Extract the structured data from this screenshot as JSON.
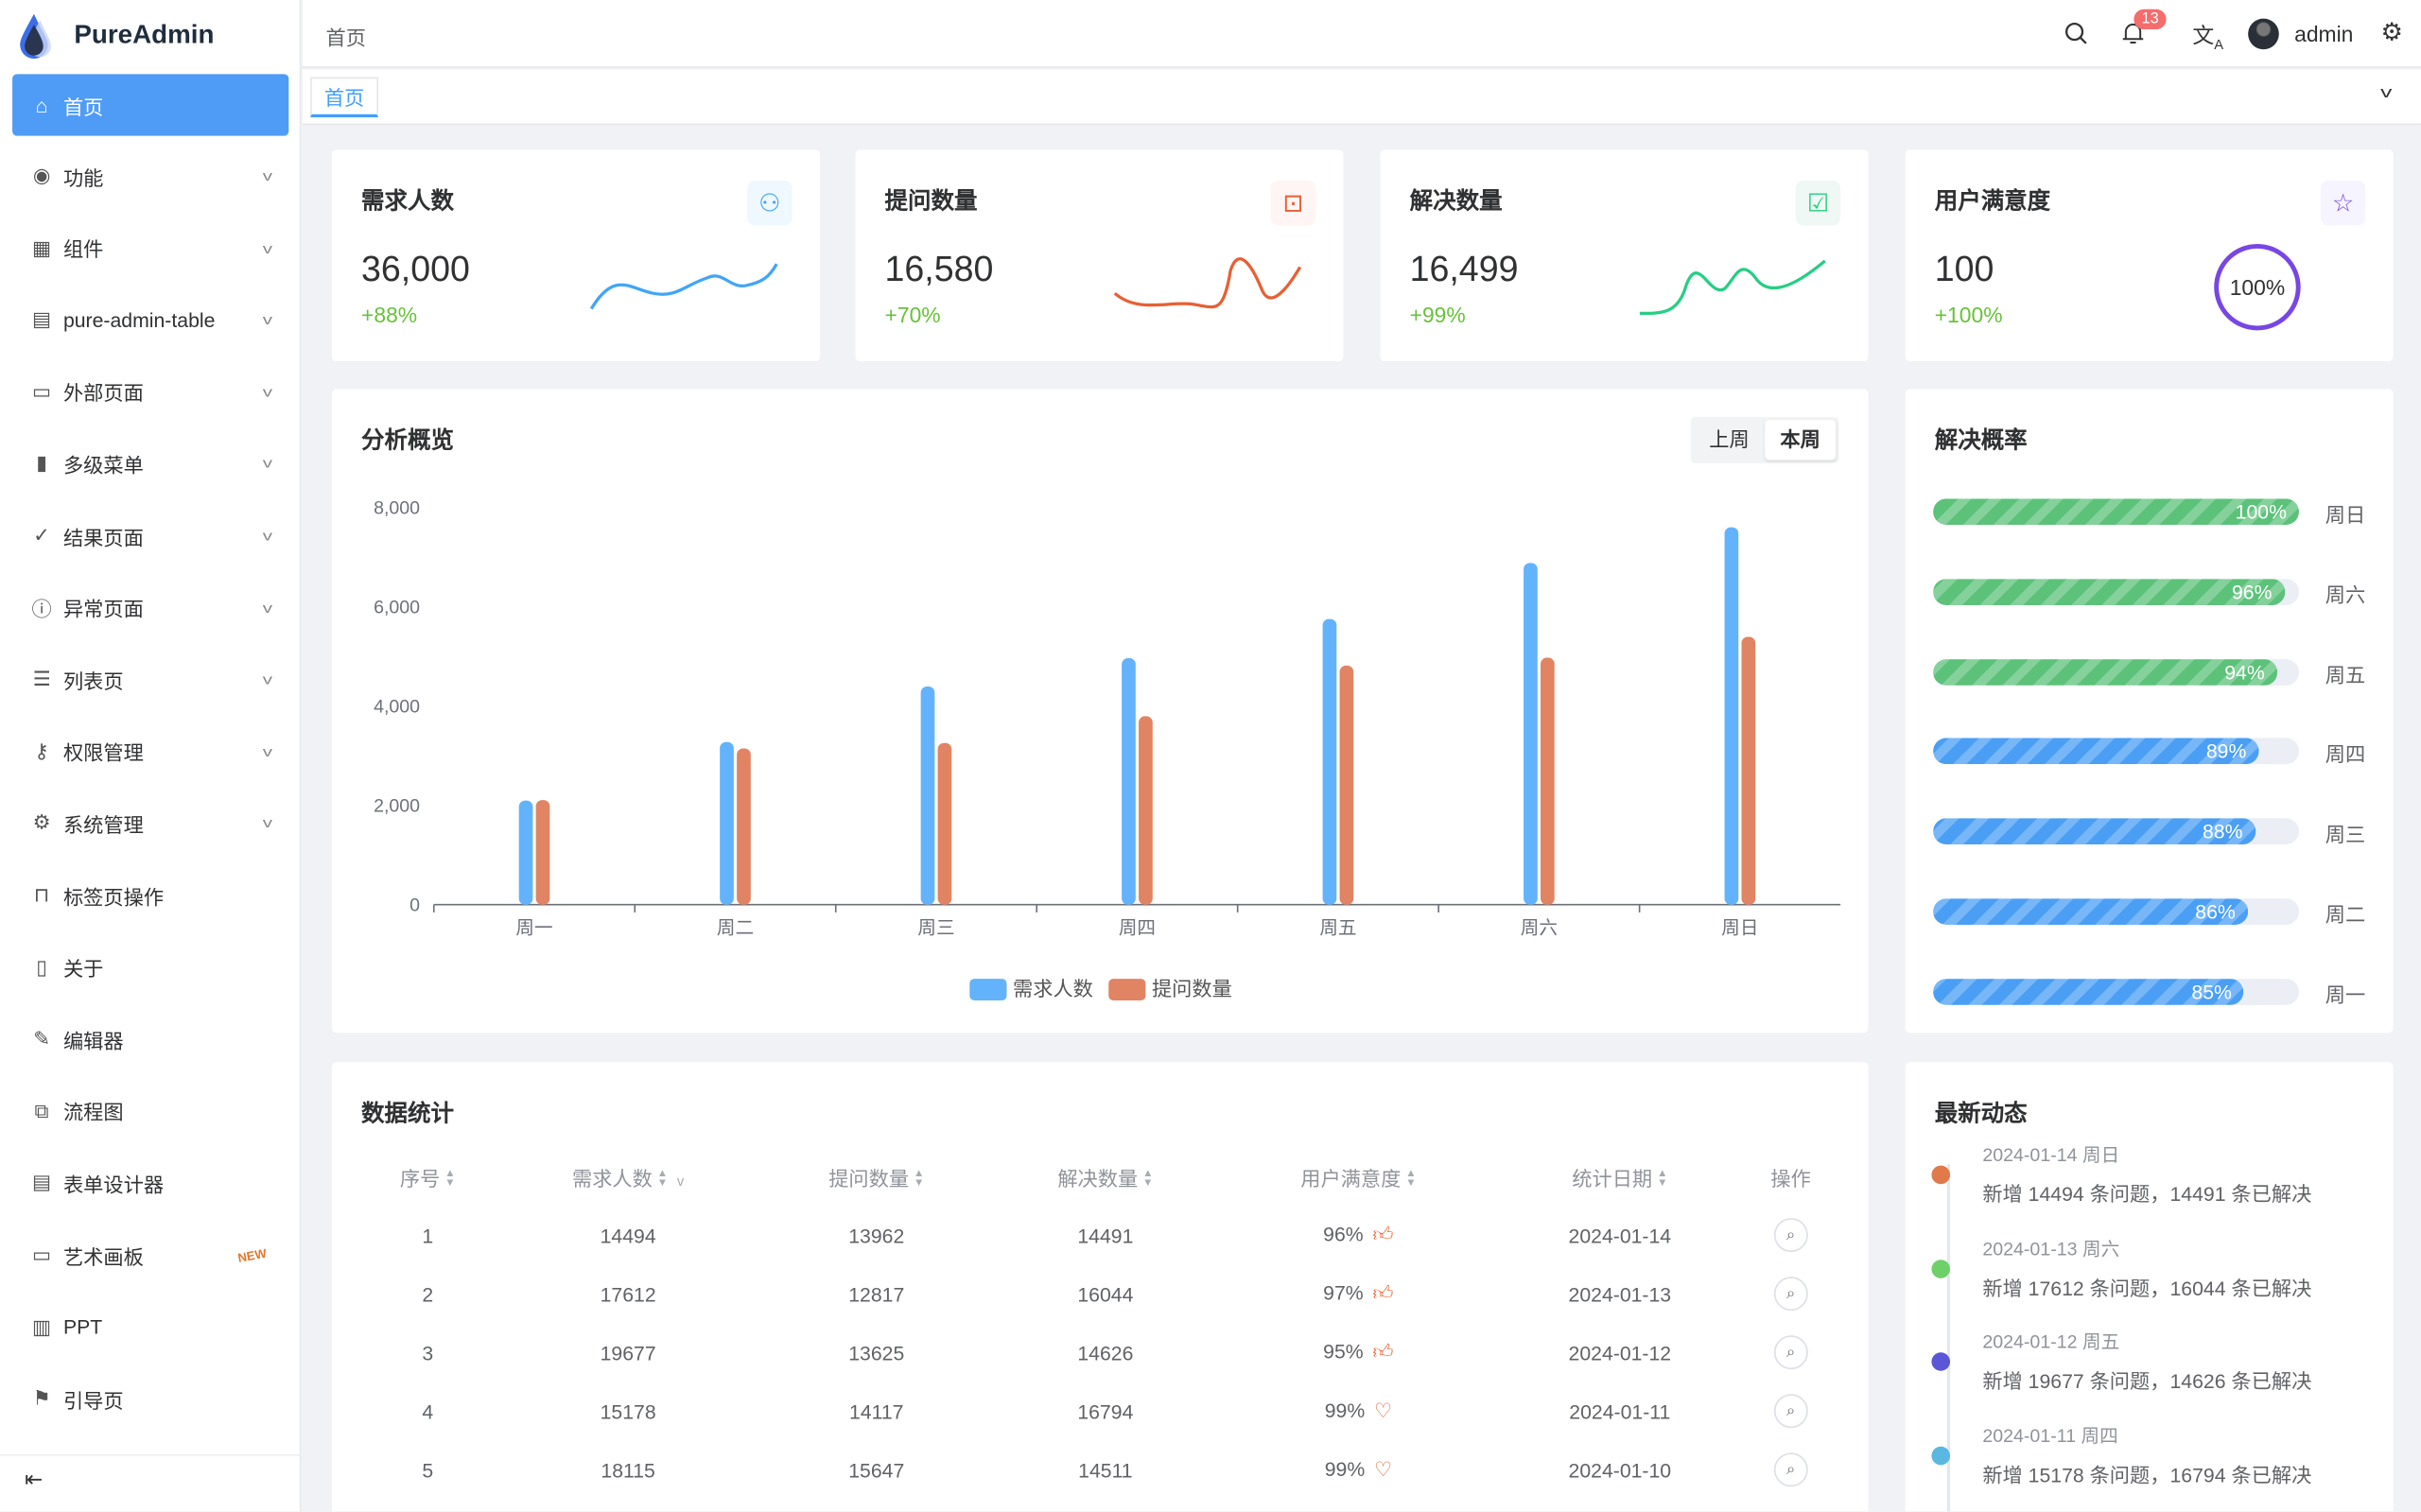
{
  "app": {
    "name": "PureAdmin"
  },
  "sidebar": {
    "items": [
      {
        "label": "首页",
        "icon": "home-icon",
        "active": true
      },
      {
        "label": "功能",
        "icon": "feature-icon",
        "expandable": true
      },
      {
        "label": "组件",
        "icon": "grid-icon",
        "expandable": true
      },
      {
        "label": "pure-admin-table",
        "icon": "table-icon",
        "expandable": true
      },
      {
        "label": "外部页面",
        "icon": "monitor-icon",
        "expandable": true
      },
      {
        "label": "多级菜单",
        "icon": "bar-chart-icon",
        "expandable": true
      },
      {
        "label": "结果页面",
        "icon": "check-circle-icon",
        "expandable": true
      },
      {
        "label": "异常页面",
        "icon": "info-icon",
        "expandable": true
      },
      {
        "label": "列表页",
        "icon": "list-icon",
        "expandable": true
      },
      {
        "label": "权限管理",
        "icon": "key-icon",
        "expandable": true
      },
      {
        "label": "系统管理",
        "icon": "gear-icon",
        "expandable": true
      },
      {
        "label": "标签页操作",
        "icon": "bookmark-icon"
      },
      {
        "label": "关于",
        "icon": "document-icon"
      },
      {
        "label": "编辑器",
        "icon": "edit-icon"
      },
      {
        "label": "流程图",
        "icon": "flow-icon"
      },
      {
        "label": "表单设计器",
        "icon": "form-icon"
      },
      {
        "label": "艺术画板",
        "icon": "board-icon",
        "badge": "NEW"
      },
      {
        "label": "PPT",
        "icon": "ppt-icon"
      },
      {
        "label": "引导页",
        "icon": "guide-icon"
      }
    ]
  },
  "header": {
    "breadcrumb": "首页",
    "notification_count": "13",
    "username": "admin"
  },
  "tags": {
    "active": "首页"
  },
  "stats": [
    {
      "title": "需求人数",
      "value": "36,000",
      "percent": "+88%",
      "color": "#41a5f6",
      "bg": "#eff8ff",
      "icon": "users-icon"
    },
    {
      "title": "提问数量",
      "value": "16,580",
      "percent": "+70%",
      "color": "#e85f33",
      "bg": "#fff5f4",
      "icon": "question-icon"
    },
    {
      "title": "解决数量",
      "value": "16,499",
      "percent": "+99%",
      "color": "#26ce83",
      "bg": "#eff8f4",
      "icon": "check-message-icon"
    },
    {
      "title": "用户满意度",
      "value": "100",
      "percent": "+100%",
      "color": "#7846e5",
      "bg": "#f6f4fe",
      "icon": "star-icon",
      "ring": "100%"
    }
  ],
  "overview": {
    "title": "分析概览",
    "toggle": [
      "上周",
      "本周"
    ],
    "active_toggle": "本周"
  },
  "chart_data": {
    "type": "bar",
    "categories": [
      "周一",
      "周二",
      "周三",
      "周四",
      "周五",
      "周六",
      "周日"
    ],
    "series": [
      {
        "name": "需求人数",
        "color": "#62b3fb",
        "values": [
          2100,
          3280,
          4400,
          4970,
          5760,
          6890,
          7610
        ]
      },
      {
        "name": "提问数量",
        "color": "#e08463",
        "values": [
          2110,
          3150,
          3260,
          3800,
          4820,
          4980,
          5400
        ]
      }
    ],
    "yticks": [
      "0",
      "2,000",
      "4,000",
      "6,000",
      "8,000"
    ],
    "ylim": [
      0,
      8000
    ],
    "legend": "bottom"
  },
  "resolve": {
    "title": "解决概率",
    "rows": [
      {
        "day": "周日",
        "value": 100,
        "label": "100%",
        "color": "#5cc27a"
      },
      {
        "day": "周六",
        "value": 96,
        "label": "96%",
        "color": "#5cc27a"
      },
      {
        "day": "周五",
        "value": 94,
        "label": "94%",
        "color": "#5cc27a"
      },
      {
        "day": "周四",
        "value": 89,
        "label": "89%",
        "color": "#4a9ff5"
      },
      {
        "day": "周三",
        "value": 88,
        "label": "88%",
        "color": "#4a9ff5"
      },
      {
        "day": "周二",
        "value": 86,
        "label": "86%",
        "color": "#4a9ff5"
      },
      {
        "day": "周一",
        "value": 85,
        "label": "85%",
        "color": "#4a9ff5"
      }
    ]
  },
  "table": {
    "title": "数据统计",
    "columns": [
      "序号",
      "需求人数",
      "提问数量",
      "解决数量",
      "用户满意度",
      "统计日期",
      "操作"
    ],
    "rows": [
      [
        "1",
        "14494",
        "13962",
        "14491",
        "96%",
        "2024-01-14"
      ],
      [
        "2",
        "17612",
        "12817",
        "16044",
        "97%",
        "2024-01-13"
      ],
      [
        "3",
        "19677",
        "13625",
        "14626",
        "95%",
        "2024-01-12"
      ],
      [
        "4",
        "15178",
        "14117",
        "16794",
        "99%",
        "2024-01-11"
      ],
      [
        "5",
        "18115",
        "15647",
        "14511",
        "99%",
        "2024-01-10"
      ]
    ]
  },
  "timeline": {
    "title": "最新动态",
    "items": [
      {
        "date": "2024-01-14 周日",
        "text": "新增 14494 条问题，14491 条已解决",
        "color": "#e07a4a"
      },
      {
        "date": "2024-01-13 周六",
        "text": "新增 17612 条问题，16044 条已解决",
        "color": "#6fd06a"
      },
      {
        "date": "2024-01-12 周五",
        "text": "新增 19677 条问题，14626 条已解决",
        "color": "#5b56d8"
      },
      {
        "date": "2024-01-11 周四",
        "text": "新增 15178 条问题，16794 条已解决",
        "color": "#5ab8e0"
      }
    ]
  }
}
